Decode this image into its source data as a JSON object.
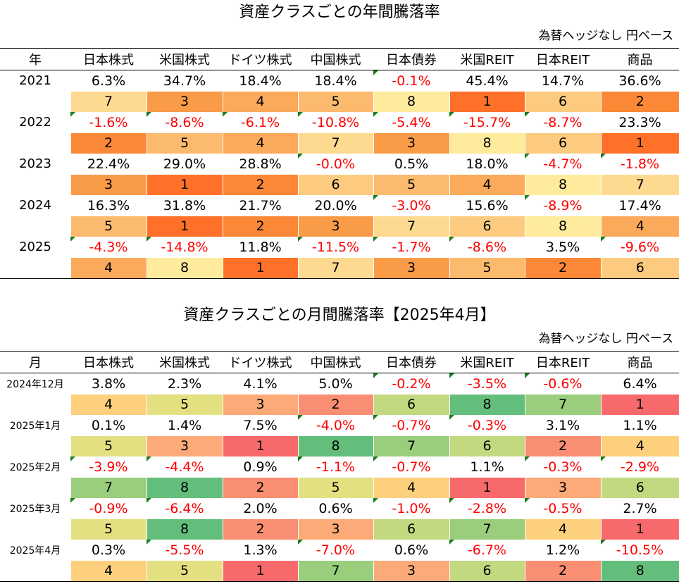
{
  "annual": {
    "title": "資産クラスごとの年間騰落率",
    "note": "為替ヘッジなし 円ベース",
    "header_label": "年",
    "columns": [
      "日本株式",
      "米国株式",
      "ドイツ株式",
      "中国株式",
      "日本債券",
      "米国REIT",
      "日本REIT",
      "商品"
    ],
    "rows": [
      {
        "label": "2021",
        "values": [
          "6.3%",
          "34.7%",
          "18.4%",
          "18.4%",
          "-0.1%",
          "45.4%",
          "14.7%",
          "36.6%"
        ],
        "ranks": [
          "7",
          "3",
          "4",
          "5",
          "8",
          "1",
          "6",
          "2"
        ]
      },
      {
        "label": "2022",
        "values": [
          "-1.6%",
          "-8.6%",
          "-6.1%",
          "-10.8%",
          "-5.4%",
          "-15.7%",
          "-8.7%",
          "23.3%"
        ],
        "ranks": [
          "2",
          "5",
          "4",
          "7",
          "3",
          "8",
          "6",
          "1"
        ]
      },
      {
        "label": "2023",
        "values": [
          "22.4%",
          "29.0%",
          "28.8%",
          "-0.0%",
          "0.5%",
          "18.0%",
          "-4.7%",
          "-1.8%"
        ],
        "ranks": [
          "3",
          "1",
          "2",
          "6",
          "5",
          "4",
          "8",
          "7"
        ]
      },
      {
        "label": "2024",
        "values": [
          "16.3%",
          "31.8%",
          "21.7%",
          "20.0%",
          "-3.0%",
          "15.6%",
          "-8.9%",
          "17.4%"
        ],
        "ranks": [
          "5",
          "1",
          "2",
          "3",
          "7",
          "6",
          "8",
          "4"
        ]
      },
      {
        "label": "2025",
        "values": [
          "-4.3%",
          "-14.8%",
          "11.8%",
          "-11.5%",
          "-1.7%",
          "-8.6%",
          "3.5%",
          "-9.6%"
        ],
        "ranks": [
          "4",
          "8",
          "1",
          "7",
          "3",
          "5",
          "2",
          "6"
        ]
      }
    ]
  },
  "monthly": {
    "title": "資産クラスごとの月間騰落率【2025年4月】",
    "note": "為替ヘッジなし 円ベース",
    "header_label": "月",
    "columns": [
      "日本株式",
      "米国株式",
      "ドイツ株式",
      "中国株式",
      "日本債券",
      "米国REIT",
      "日本REIT",
      "商品"
    ],
    "rows": [
      {
        "label": "2024年12月",
        "values": [
          "3.8%",
          "2.3%",
          "4.1%",
          "5.0%",
          "-0.2%",
          "-3.5%",
          "-0.6%",
          "6.4%"
        ],
        "ranks": [
          "4",
          "5",
          "3",
          "2",
          "6",
          "8",
          "7",
          "1"
        ]
      },
      {
        "label": "2025年1月",
        "values": [
          "0.1%",
          "1.4%",
          "7.5%",
          "-4.0%",
          "-0.7%",
          "-0.3%",
          "3.1%",
          "1.1%"
        ],
        "ranks": [
          "5",
          "3",
          "1",
          "8",
          "7",
          "6",
          "2",
          "4"
        ]
      },
      {
        "label": "2025年2月",
        "values": [
          "-3.9%",
          "-4.4%",
          "0.9%",
          "-1.1%",
          "-0.7%",
          "1.1%",
          "-0.3%",
          "-2.9%"
        ],
        "ranks": [
          "7",
          "8",
          "2",
          "5",
          "4",
          "1",
          "3",
          "6"
        ]
      },
      {
        "label": "2025年3月",
        "values": [
          "-0.9%",
          "-6.4%",
          "2.0%",
          "0.6%",
          "-1.0%",
          "-2.8%",
          "-0.5%",
          "2.7%"
        ],
        "ranks": [
          "5",
          "8",
          "2",
          "3",
          "6",
          "7",
          "4",
          "1"
        ]
      },
      {
        "label": "2025年4月",
        "values": [
          "0.3%",
          "-5.5%",
          "1.3%",
          "-7.0%",
          "0.6%",
          "-6.7%",
          "1.2%",
          "-10.5%"
        ],
        "ranks": [
          "4",
          "5",
          "1",
          "7",
          "3",
          "6",
          "2",
          "8"
        ]
      }
    ]
  },
  "colors": {
    "annual_rank_scale": {
      "1": "#ff7128",
      "2": "#fb8836",
      "3": "#fa9b48",
      "4": "#fbaa5b",
      "5": "#fcba6e",
      "6": "#fdcb80",
      "7": "#feda90",
      "8": "#ffeb9c"
    },
    "monthly_rank_scale": {
      "1": "#f8696b",
      "2": "#fa8e72",
      "3": "#fcaa77",
      "4": "#fdd07e",
      "5": "#e3e082",
      "6": "#c3d980",
      "7": "#9acd7c",
      "8": "#63be7b"
    },
    "negative_text": "#ff0000"
  }
}
